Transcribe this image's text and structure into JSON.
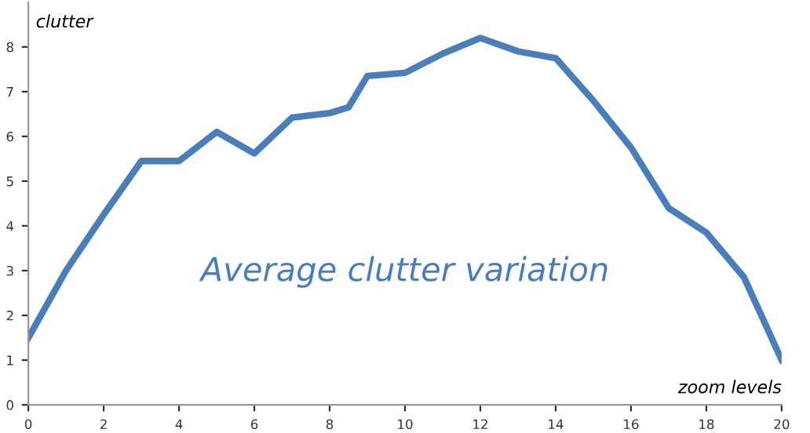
{
  "chart_data": {
    "type": "line",
    "xlabel": "zoom levels",
    "ylabel": "clutter",
    "annotations": [
      "Average clutter variation"
    ],
    "series": [
      {
        "color": "#4a7ebb",
        "x": [
          0,
          1,
          2,
          3,
          4,
          5,
          6,
          7,
          8,
          8.5,
          9,
          10,
          11,
          12,
          13,
          14,
          15,
          16,
          17,
          18,
          19,
          20
        ],
        "values": [
          1.5,
          3.0,
          4.25,
          5.45,
          5.45,
          6.1,
          5.62,
          6.42,
          6.52,
          6.65,
          7.35,
          7.42,
          7.85,
          8.2,
          7.9,
          7.75,
          6.8,
          5.75,
          4.4,
          3.85,
          2.85,
          1.0
        ]
      }
    ],
    "xlim": [
      0,
      20
    ],
    "xticks": [
      0,
      2,
      4,
      6,
      8,
      10,
      12,
      14,
      16,
      18,
      20
    ],
    "ylim": [
      0,
      9
    ],
    "yticks": [
      0,
      1,
      2,
      3,
      4,
      5,
      6,
      7,
      8
    ],
    "grid": false,
    "legend": false,
    "marker": "none",
    "line_style": "solid"
  }
}
